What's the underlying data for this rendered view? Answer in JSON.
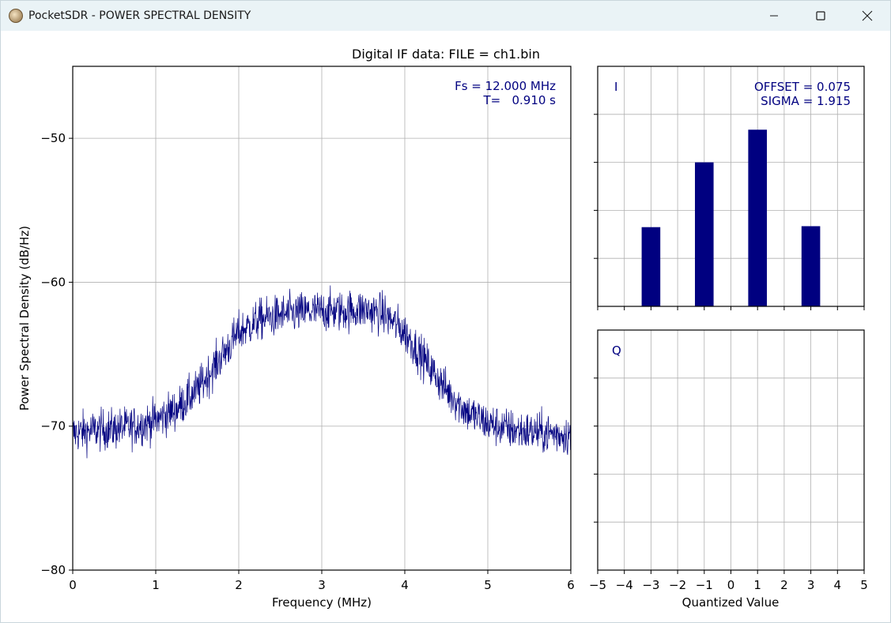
{
  "window": {
    "title": "PocketSDR - POWER SPECTRAL DENSITY",
    "icon": "app-icon",
    "controls": [
      "minimize-icon",
      "maximize-icon",
      "close-icon"
    ]
  },
  "colors": {
    "series": "#000080",
    "grid": "#b0b0b0",
    "axis": "#000000",
    "titlebar": "#eaf3f6"
  },
  "chart_data": [
    {
      "type": "line",
      "title": "Digital IF data: FILE = ch1.bin",
      "xlabel": "Frequency (MHz)",
      "ylabel": "Power Spectral Density (dB/Hz)",
      "xlim": [
        0,
        6
      ],
      "ylim": [
        -80,
        -45
      ],
      "xticks": [
        "0",
        "1",
        "2",
        "3",
        "4",
        "5",
        "6"
      ],
      "yticks": [
        "−50",
        "−60",
        "−70",
        "−80"
      ],
      "ytick_values": [
        -50,
        -60,
        -70,
        -80
      ],
      "grid": true,
      "annotations": [
        "Fs = 12.000 MHz",
        "T=   0.910 s"
      ],
      "series": [
        {
          "x": [
            0,
            0.25,
            0.5,
            0.75,
            1.0,
            1.25,
            1.5,
            1.75,
            2.0,
            2.25,
            2.5,
            2.75,
            3.0,
            3.25,
            3.5,
            3.75,
            4.0,
            4.25,
            4.5,
            4.75,
            5.0,
            5.25,
            5.5,
            5.75,
            6.0
          ],
          "y": [
            -70.5,
            -70.3,
            -70.2,
            -70.0,
            -69.6,
            -68.8,
            -67.5,
            -65.5,
            -63.5,
            -62.6,
            -62.3,
            -62.1,
            -62.0,
            -62.0,
            -61.9,
            -62.2,
            -63.5,
            -65.5,
            -67.5,
            -69.0,
            -69.8,
            -70.2,
            -70.4,
            -70.5,
            -70.6
          ],
          "noise_db": 1.2
        }
      ]
    },
    {
      "type": "bar",
      "panel": "I",
      "xlim": [
        -5,
        5
      ],
      "ylim": [
        0,
        0.5
      ],
      "categories": [
        -3,
        -1,
        1,
        3
      ],
      "values": [
        0.165,
        0.3,
        0.368,
        0.167
      ],
      "annotations": [
        "OFFSET = 0.075",
        "SIGMA = 1.915"
      ],
      "grid": true
    },
    {
      "type": "bar",
      "panel": "Q",
      "xlabel": "Quantized Value",
      "xlim": [
        -5,
        5
      ],
      "xticks": [
        "−5",
        "−4",
        "−3",
        "−2",
        "−1",
        "0",
        "1",
        "2",
        "3",
        "4",
        "5"
      ],
      "categories": [],
      "values": [],
      "grid": true
    }
  ]
}
